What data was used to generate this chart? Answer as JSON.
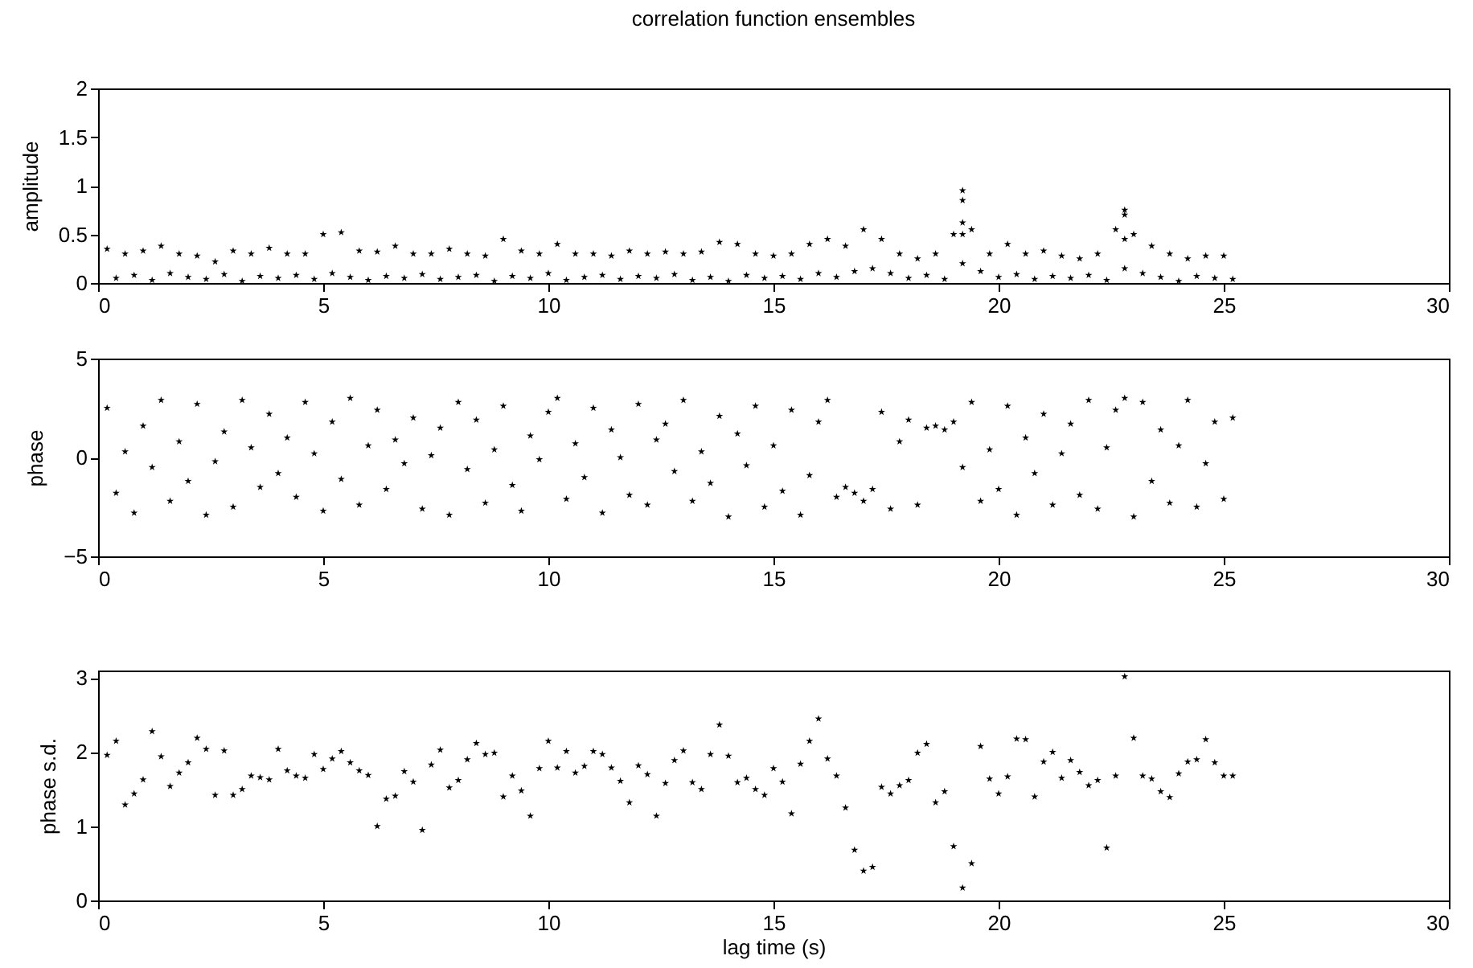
{
  "chart_data": [
    {
      "type": "scatter",
      "title": "correlation function ensembles",
      "ylabel": "amplitude",
      "marker": "star",
      "xlim": [
        0,
        30
      ],
      "xticks": [
        0,
        5,
        10,
        15,
        20,
        25,
        30
      ],
      "ylim": [
        0,
        2
      ],
      "yticks": [
        0,
        0.5,
        1,
        1.5,
        2
      ],
      "grid": false,
      "x": [
        0.2,
        0.6,
        1.0,
        1.4,
        1.8,
        2.2,
        2.6,
        3.0,
        3.4,
        3.8,
        4.2,
        4.6,
        5.0,
        5.4,
        5.8,
        6.2,
        6.6,
        7.0,
        7.4,
        7.8,
        8.2,
        8.6,
        9.0,
        9.4,
        9.8,
        10.2,
        10.6,
        11.0,
        11.4,
        11.8,
        12.2,
        12.6,
        13.0,
        13.4,
        13.8,
        14.2,
        14.6,
        15.0,
        15.4,
        15.8,
        16.2,
        16.6,
        17.0,
        17.4,
        17.8,
        18.2,
        18.6,
        19.0,
        19.4,
        19.8,
        20.2,
        20.6,
        21.0,
        21.4,
        21.8,
        22.2,
        22.6,
        23.0,
        23.4,
        23.8,
        24.2,
        24.6,
        25.0,
        0.4,
        0.8,
        1.2,
        1.6,
        2.0,
        2.4,
        2.8,
        3.2,
        3.6,
        4.0,
        4.4,
        4.8,
        5.2,
        5.6,
        6.0,
        6.4,
        6.8,
        7.2,
        7.6,
        8.0,
        8.4,
        8.8,
        9.2,
        9.6,
        10.0,
        10.4,
        10.8,
        11.2,
        11.6,
        12.0,
        12.4,
        12.8,
        13.2,
        13.6,
        14.0,
        14.4,
        14.8,
        15.2,
        15.6,
        16.0,
        16.4,
        16.8,
        17.2,
        17.6,
        18.0,
        18.4,
        18.8,
        19.2,
        19.6,
        20.0,
        20.4,
        20.8,
        21.2,
        21.6,
        22.0,
        22.4,
        22.8,
        23.2,
        23.6,
        24.0,
        24.4,
        24.8,
        25.2,
        19.2,
        19.2,
        19.2,
        19.2,
        22.8,
        22.8,
        22.8
      ],
      "series": [
        {
          "color": "#000000",
          "values": [
            0.35,
            0.3,
            0.33,
            0.38,
            0.3,
            0.28,
            0.22,
            0.33,
            0.3,
            0.36,
            0.3,
            0.3,
            0.5,
            0.52,
            0.33,
            0.32,
            0.38,
            0.3,
            0.3,
            0.35,
            0.3,
            0.28,
            0.45,
            0.33,
            0.3,
            0.4,
            0.3,
            0.3,
            0.28,
            0.33,
            0.3,
            0.32,
            0.3,
            0.32,
            0.42,
            0.4,
            0.3,
            0.28,
            0.3,
            0.4,
            0.45,
            0.38,
            0.55,
            0.45,
            0.3,
            0.25,
            0.3,
            0.5,
            0.55,
            0.3,
            0.4,
            0.3,
            0.33,
            0.28,
            0.25,
            0.3,
            0.55,
            0.5,
            0.38,
            0.3,
            0.25,
            0.28,
            0.28,
            0.05,
            0.08,
            0.03,
            0.1,
            0.06,
            0.04,
            0.09,
            0.02,
            0.07,
            0.05,
            0.08,
            0.04,
            0.1,
            0.06,
            0.03,
            0.07,
            0.05,
            0.09,
            0.04,
            0.06,
            0.08,
            0.02,
            0.07,
            0.05,
            0.1,
            0.03,
            0.06,
            0.08,
            0.04,
            0.07,
            0.05,
            0.09,
            0.03,
            0.06,
            0.02,
            0.08,
            0.05,
            0.07,
            0.04,
            0.1,
            0.06,
            0.12,
            0.15,
            0.1,
            0.05,
            0.08,
            0.04,
            0.2,
            0.12,
            0.06,
            0.09,
            0.04,
            0.07,
            0.05,
            0.08,
            0.03,
            0.15,
            0.1,
            0.06,
            0.02,
            0.07,
            0.05,
            0.04,
            0.95,
            0.85,
            0.62,
            0.5,
            0.75,
            0.7,
            0.45
          ]
        }
      ]
    },
    {
      "type": "scatter",
      "ylabel": "phase",
      "marker": "star",
      "xlim": [
        0,
        30
      ],
      "xticks": [
        0,
        5,
        10,
        15,
        20,
        25,
        30
      ],
      "ylim": [
        -5,
        5
      ],
      "yticks": [
        -5,
        0,
        5
      ],
      "grid": false,
      "x": [
        0.2,
        0.4,
        0.6,
        0.8,
        1.0,
        1.2,
        1.4,
        1.6,
        1.8,
        2.0,
        2.2,
        2.4,
        2.6,
        2.8,
        3.0,
        3.2,
        3.4,
        3.6,
        3.8,
        4.0,
        4.2,
        4.4,
        4.6,
        4.8,
        5.0,
        5.2,
        5.4,
        5.6,
        5.8,
        6.0,
        6.2,
        6.4,
        6.6,
        6.8,
        7.0,
        7.2,
        7.4,
        7.6,
        7.8,
        8.0,
        8.2,
        8.4,
        8.6,
        8.8,
        9.0,
        9.2,
        9.4,
        9.6,
        9.8,
        10.0,
        10.2,
        10.4,
        10.6,
        10.8,
        11.0,
        11.2,
        11.4,
        11.6,
        11.8,
        12.0,
        12.2,
        12.4,
        12.6,
        12.8,
        13.0,
        13.2,
        13.4,
        13.6,
        13.8,
        14.0,
        14.2,
        14.4,
        14.6,
        14.8,
        15.0,
        15.2,
        15.4,
        15.6,
        15.8,
        16.0,
        16.2,
        16.4,
        16.6,
        16.8,
        17.0,
        17.2,
        17.4,
        17.6,
        17.8,
        18.0,
        18.2,
        18.4,
        18.6,
        18.8,
        19.0,
        19.2,
        19.4,
        19.6,
        19.8,
        20.0,
        20.2,
        20.4,
        20.6,
        20.8,
        21.0,
        21.2,
        21.4,
        21.6,
        21.8,
        22.0,
        22.2,
        22.4,
        22.6,
        22.8,
        23.0,
        23.2,
        23.4,
        23.6,
        23.8,
        24.0,
        24.2,
        24.4,
        24.6,
        24.8,
        25.0,
        25.2
      ],
      "series": [
        {
          "color": "#000000",
          "values": [
            2.5,
            -1.8,
            0.3,
            -2.8,
            1.6,
            -0.5,
            2.9,
            -2.2,
            0.8,
            -1.2,
            2.7,
            -2.9,
            -0.2,
            1.3,
            -2.5,
            2.9,
            0.5,
            -1.5,
            2.2,
            -0.8,
            1.0,
            -2.0,
            2.8,
            0.2,
            -2.7,
            1.8,
            -1.1,
            3.0,
            -2.4,
            0.6,
            2.4,
            -1.6,
            0.9,
            -0.3,
            2.0,
            -2.6,
            0.1,
            1.5,
            -2.9,
            2.8,
            -0.6,
            1.9,
            -2.3,
            0.4,
            2.6,
            -1.4,
            -2.7,
            1.1,
            -0.1,
            2.3,
            3.0,
            -2.1,
            0.7,
            -1.0,
            2.5,
            -2.8,
            1.4,
            0.0,
            -1.9,
            2.7,
            -2.4,
            0.9,
            1.7,
            -0.7,
            2.9,
            -2.2,
            0.3,
            -1.3,
            2.1,
            -3.0,
            1.2,
            -0.4,
            2.6,
            -2.5,
            0.6,
            -1.7,
            2.4,
            -2.9,
            -0.9,
            1.8,
            2.9,
            -2.0,
            -1.5,
            -1.8,
            -2.2,
            -1.6,
            2.3,
            -2.6,
            0.8,
            1.9,
            -2.4,
            1.5,
            1.6,
            1.4,
            1.8,
            -0.5,
            2.8,
            -2.2,
            0.4,
            -1.6,
            2.6,
            -2.9,
            1.0,
            -0.8,
            2.2,
            -2.4,
            0.2,
            1.7,
            -1.9,
            2.9,
            -2.6,
            0.5,
            2.4,
            3.0,
            -3.0,
            2.8,
            -1.2,
            1.4,
            -2.3,
            0.6,
            2.9,
            -2.5,
            -0.3,
            1.8,
            -2.1,
            2.0
          ]
        }
      ]
    },
    {
      "type": "scatter",
      "xlabel": "lag time (s)",
      "ylabel": "phase s.d.",
      "marker": "star",
      "xlim": [
        0,
        30
      ],
      "xticks": [
        0,
        5,
        10,
        15,
        20,
        25,
        30
      ],
      "ylim": [
        0,
        3.1
      ],
      "yticks": [
        0,
        1,
        2,
        3
      ],
      "grid": false,
      "x": [
        0.2,
        0.4,
        0.6,
        0.8,
        1.0,
        1.2,
        1.4,
        1.6,
        1.8,
        2.0,
        2.2,
        2.4,
        2.6,
        2.8,
        3.0,
        3.2,
        3.4,
        3.6,
        3.8,
        4.0,
        4.2,
        4.4,
        4.6,
        4.8,
        5.0,
        5.2,
        5.4,
        5.6,
        5.8,
        6.0,
        6.2,
        6.4,
        6.6,
        6.8,
        7.0,
        7.2,
        7.4,
        7.6,
        7.8,
        8.0,
        8.2,
        8.4,
        8.6,
        8.8,
        9.0,
        9.2,
        9.4,
        9.6,
        9.8,
        10.0,
        10.2,
        10.4,
        10.6,
        10.8,
        11.0,
        11.2,
        11.4,
        11.6,
        11.8,
        12.0,
        12.2,
        12.4,
        12.6,
        12.8,
        13.0,
        13.2,
        13.4,
        13.6,
        13.8,
        14.0,
        14.2,
        14.4,
        14.6,
        14.8,
        15.0,
        15.2,
        15.4,
        15.6,
        15.8,
        16.0,
        16.2,
        16.4,
        16.6,
        16.8,
        17.0,
        17.2,
        17.4,
        17.6,
        17.8,
        18.0,
        18.2,
        18.4,
        18.6,
        18.8,
        19.0,
        19.2,
        19.4,
        19.6,
        19.8,
        20.0,
        20.2,
        20.4,
        20.6,
        20.8,
        21.0,
        21.2,
        21.4,
        21.6,
        21.8,
        22.0,
        22.2,
        22.4,
        22.6,
        22.8,
        23.0,
        23.2,
        23.4,
        23.6,
        23.8,
        24.0,
        24.2,
        24.4,
        24.6,
        24.8,
        25.0,
        25.2
      ],
      "series": [
        {
          "color": "#000000",
          "values": [
            1.96,
            2.15,
            1.29,
            1.44,
            1.63,
            2.28,
            1.94,
            1.54,
            1.72,
            1.86,
            2.19,
            2.04,
            1.42,
            2.02,
            1.42,
            1.5,
            1.68,
            1.66,
            1.63,
            2.04,
            1.75,
            1.68,
            1.65,
            1.97,
            1.77,
            1.91,
            2.01,
            1.86,
            1.75,
            1.69,
            1.0,
            1.37,
            1.41,
            1.74,
            1.6,
            0.95,
            1.83,
            2.03,
            1.52,
            1.62,
            1.9,
            2.12,
            1.97,
            1.99,
            1.4,
            1.68,
            1.48,
            1.14,
            1.78,
            2.15,
            1.79,
            2.01,
            1.72,
            1.81,
            2.01,
            1.97,
            1.79,
            1.61,
            1.32,
            1.82,
            1.7,
            1.14,
            1.58,
            1.89,
            2.02,
            1.59,
            1.5,
            1.97,
            2.37,
            1.95,
            1.59,
            1.65,
            1.5,
            1.42,
            1.78,
            1.6,
            1.17,
            1.84,
            2.15,
            2.45,
            1.91,
            1.68,
            1.25,
            0.68,
            0.4,
            0.45,
            1.53,
            1.44,
            1.55,
            1.62,
            1.99,
            2.11,
            1.32,
            1.47,
            0.73,
            0.17,
            0.5,
            2.08,
            1.64,
            1.44,
            1.67,
            2.18,
            2.17,
            1.4,
            1.87,
            2.0,
            1.65,
            1.89,
            1.73,
            1.55,
            1.62,
            0.71,
            1.68,
            3.02,
            2.19,
            1.68,
            1.64,
            1.47,
            1.39,
            1.71,
            1.87,
            1.9,
            2.17,
            1.86,
            1.68,
            1.68
          ]
        }
      ]
    }
  ]
}
